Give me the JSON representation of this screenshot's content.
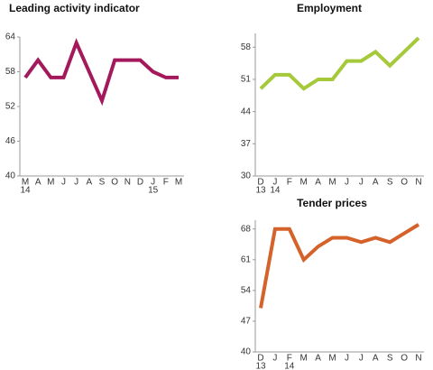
{
  "chart_data": [
    {
      "type": "line",
      "title": "Leading activity indicator",
      "categories": [
        "M",
        "A",
        "M",
        "J",
        "J",
        "A",
        "S",
        "O",
        "N",
        "D",
        "J",
        "F",
        "M"
      ],
      "year_labels": [
        "14",
        null,
        null,
        null,
        null,
        null,
        null,
        null,
        null,
        null,
        "15",
        null,
        null
      ],
      "values": [
        57,
        60,
        57,
        57,
        63,
        58,
        53,
        60,
        60,
        60,
        58,
        57,
        57
      ],
      "color": "#a3195b",
      "ylim": [
        40,
        64
      ],
      "yticks": [
        40,
        46,
        52,
        58,
        64
      ]
    },
    {
      "type": "line",
      "title": "Employment",
      "categories": [
        "D",
        "J",
        "F",
        "M",
        "A",
        "M",
        "J",
        "J",
        "A",
        "S",
        "O",
        "N"
      ],
      "year_labels": [
        "13",
        "14",
        null,
        null,
        null,
        null,
        null,
        null,
        null,
        null,
        null,
        null
      ],
      "values": [
        49,
        52,
        52,
        49,
        51,
        51,
        55,
        55,
        57,
        54,
        57,
        60
      ],
      "color": "#a5c93a",
      "ylim": [
        30,
        61
      ],
      "yticks": [
        30,
        37,
        44,
        51,
        58
      ]
    },
    {
      "type": "line",
      "title": "Tender prices",
      "categories": [
        "D",
        "J",
        "F",
        "M",
        "A",
        "M",
        "J",
        "J",
        "A",
        "S",
        "O",
        "N"
      ],
      "year_labels": [
        "13",
        null,
        "14",
        null,
        null,
        null,
        null,
        null,
        null,
        null,
        null,
        null
      ],
      "values": [
        50,
        68,
        68,
        61,
        64,
        66,
        66,
        65,
        66,
        65,
        67,
        69
      ],
      "color": "#d4622a",
      "ylim": [
        40,
        70
      ],
      "yticks": [
        40,
        47,
        54,
        61,
        68
      ]
    }
  ]
}
